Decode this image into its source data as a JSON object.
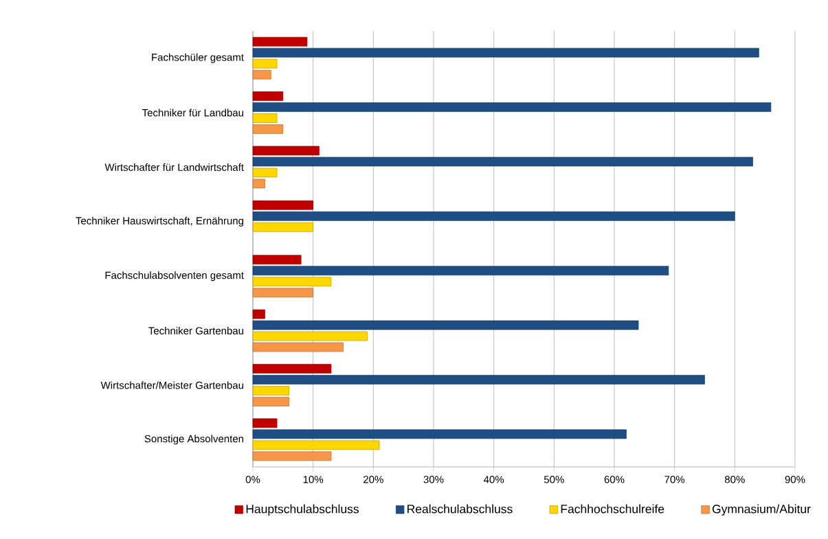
{
  "chart_data": {
    "type": "bar",
    "orientation": "horizontal",
    "categories": [
      "Fachschüler gesamt",
      "Techniker für Landbau",
      "Wirtschafter für Landwirtschaft",
      "Techniker Hauswirtschaft, Ernährung",
      "Fachschulabsolventen gesamt",
      "Techniker Gartenbau",
      "Wirtschafter/Meister Gartenbau",
      "Sonstige Absolventen"
    ],
    "series": [
      {
        "name": "Hauptschulabschluss",
        "color": "#c00000",
        "values": [
          9,
          5,
          11,
          10,
          8,
          2,
          13,
          4
        ]
      },
      {
        "name": "Realschulabschluss",
        "color": "#1f4e85",
        "values": [
          84,
          86,
          83,
          80,
          69,
          64,
          75,
          62
        ]
      },
      {
        "name": "Fachhochschulreife",
        "color": "#ffd700",
        "values": [
          4,
          4,
          4,
          10,
          13,
          19,
          6,
          21
        ]
      },
      {
        "name": "Gymnasium/Abitur",
        "color": "#f79646",
        "values": [
          3,
          5,
          2,
          null,
          10,
          15,
          6,
          13
        ]
      }
    ],
    "xlim": [
      0,
      90
    ],
    "xticks": [
      {
        "value": 0,
        "label": "0%"
      },
      {
        "value": 10,
        "label": "10%"
      },
      {
        "value": 20,
        "label": "20%"
      },
      {
        "value": 30,
        "label": "30%"
      },
      {
        "value": 40,
        "label": "40%"
      },
      {
        "value": 50,
        "label": "50%"
      },
      {
        "value": 60,
        "label": "60%"
      },
      {
        "value": 70,
        "label": "70%"
      },
      {
        "value": 80,
        "label": "80%"
      },
      {
        "value": 90,
        "label": "90%"
      }
    ],
    "grid": "x",
    "legend": "bottom"
  }
}
